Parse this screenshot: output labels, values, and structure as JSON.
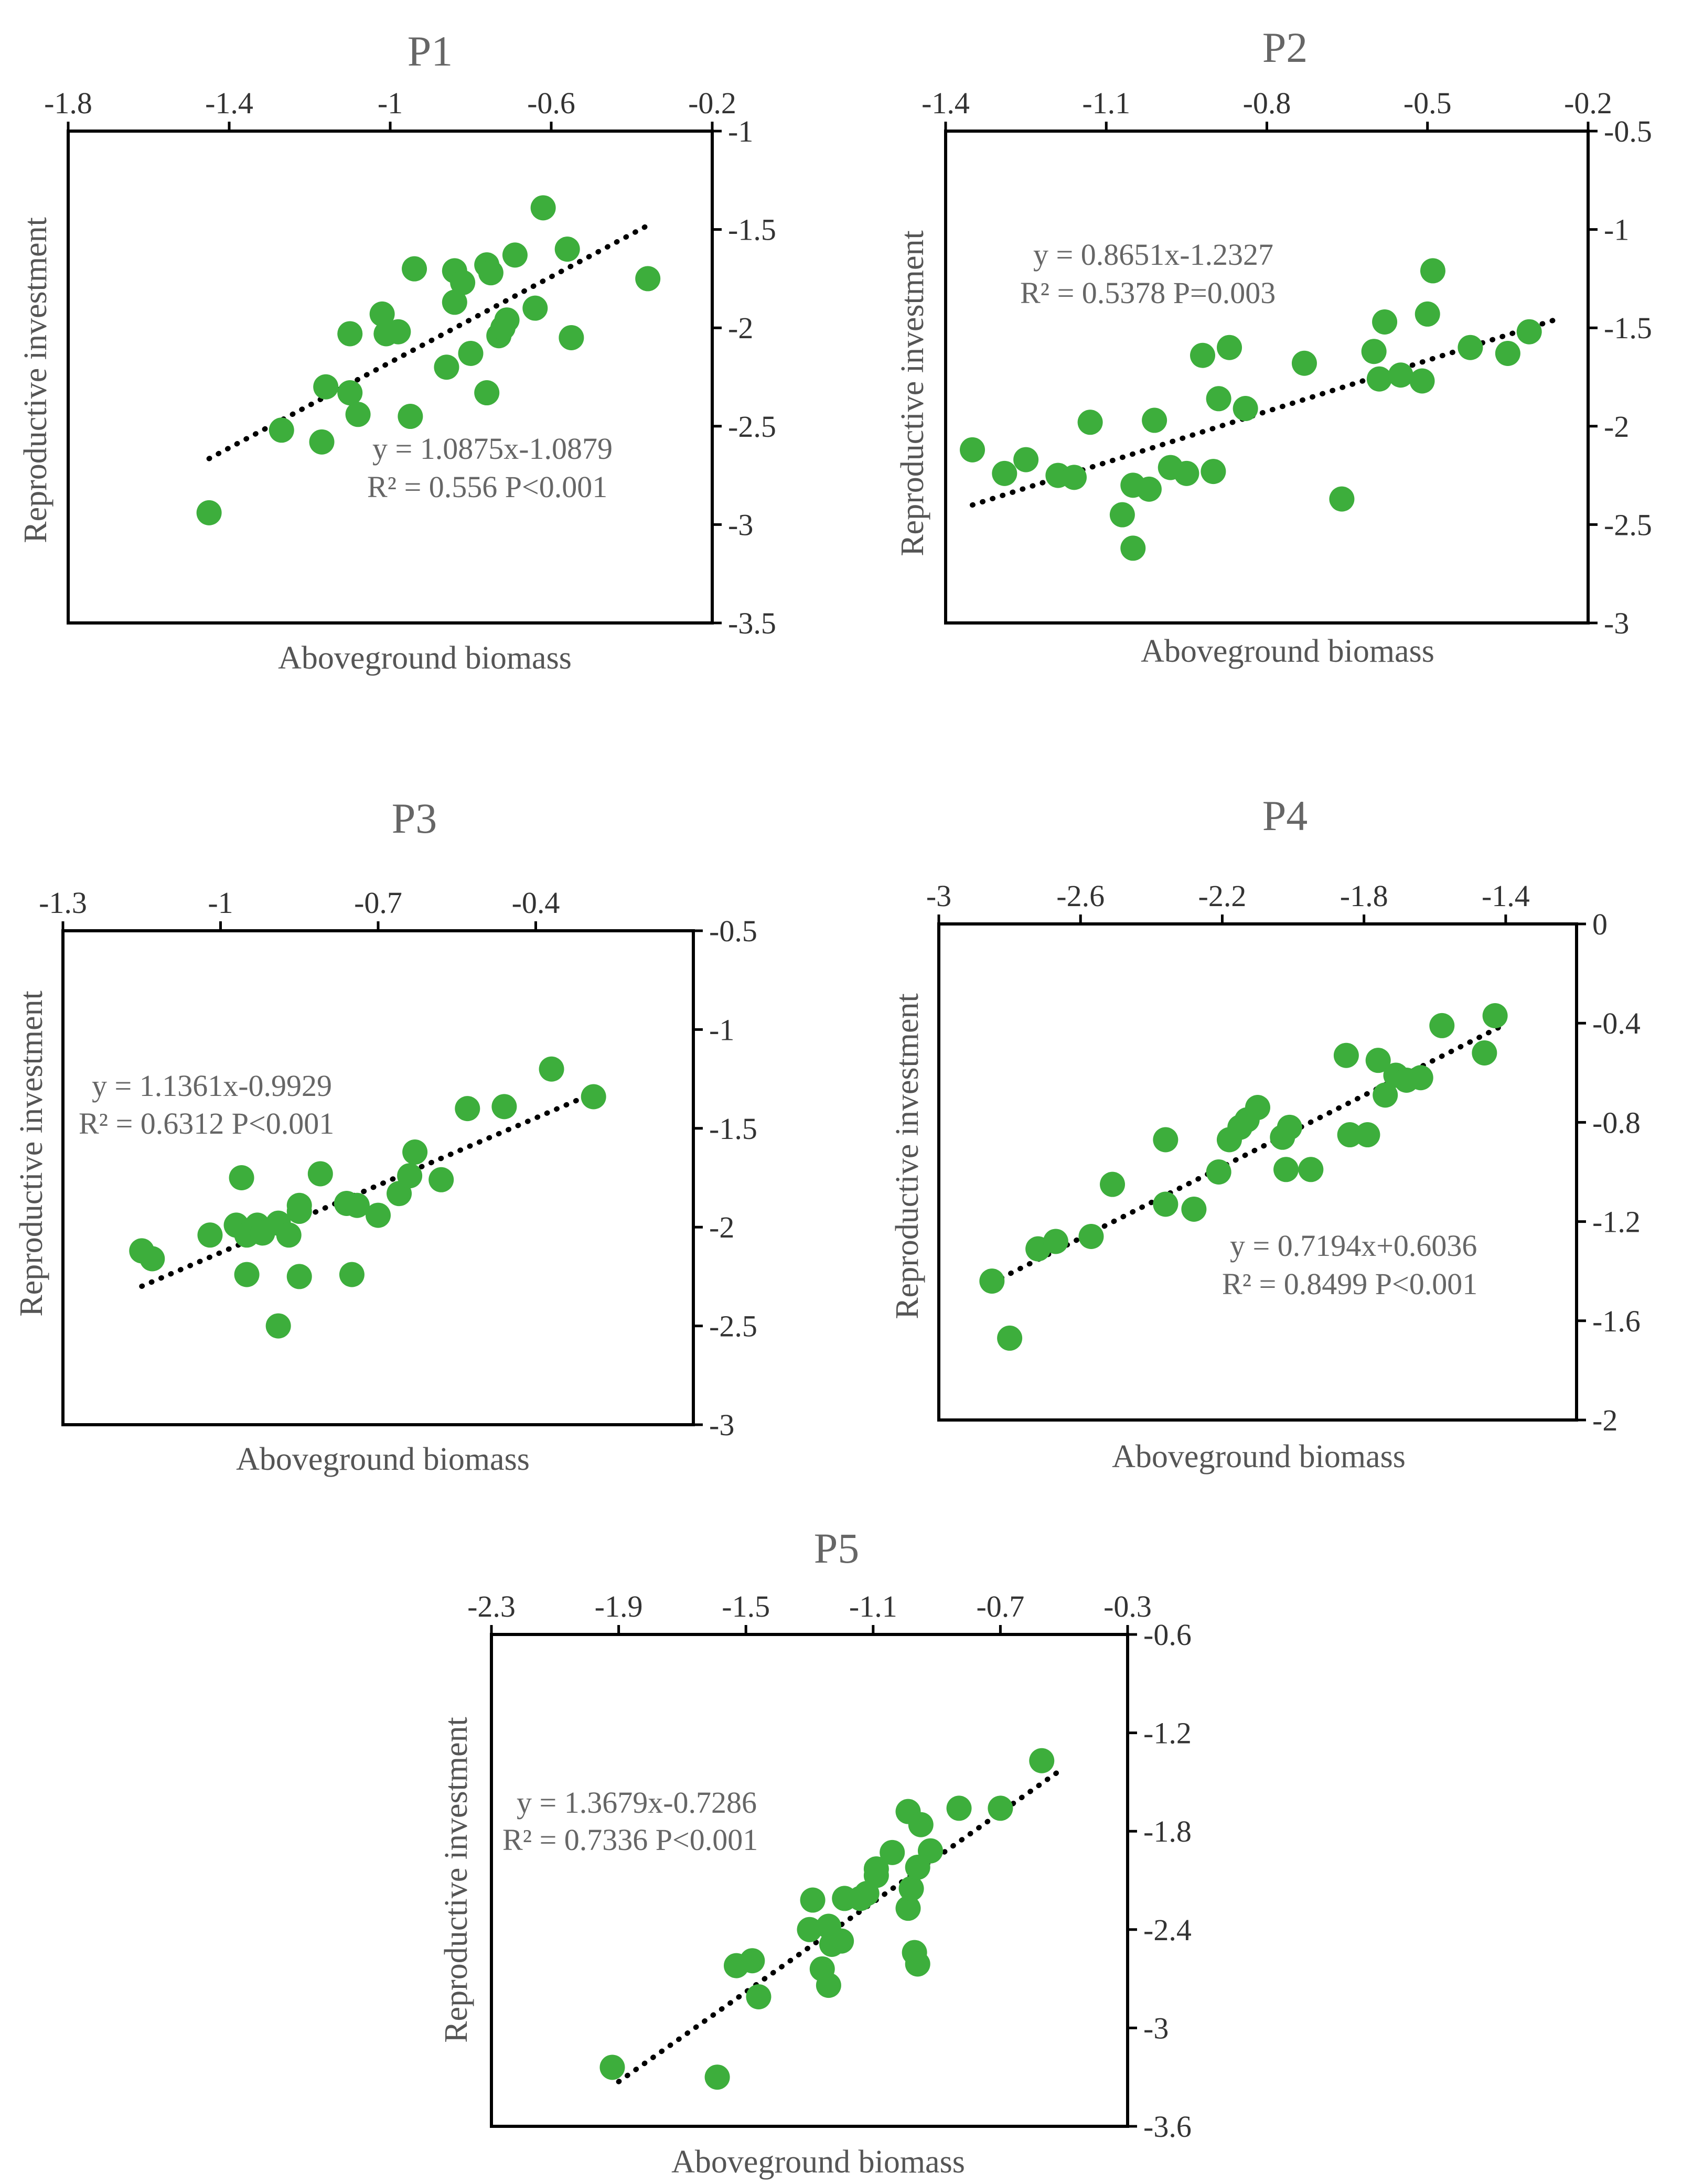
{
  "colors": {
    "point": "#3DAE3C",
    "axis": "#000000",
    "title": "#666666",
    "text": "#555555"
  },
  "chart_data": [
    {
      "type": "scatter",
      "title": "P1",
      "xlabel": "Aboveground biomass",
      "ylabel": "Reproductive investment",
      "xlim": [
        -1.8,
        -0.2
      ],
      "ylim": [
        -3.5,
        -1
      ],
      "xticks": [
        -1.8,
        -1.4,
        -1,
        -0.6,
        -0.2
      ],
      "yticks": [
        -1,
        -1.5,
        -2,
        -2.5,
        -3,
        -3.5
      ],
      "xtick_labels": [
        "-1.8",
        "-1.4",
        "-1",
        "-0.6",
        "-0.2"
      ],
      "ytick_labels": [
        "-1",
        "-1.5",
        "-2",
        "-2.5",
        "-3",
        "-3.5"
      ],
      "trend": {
        "slope": 1.0875,
        "intercept": -1.0879,
        "x_range": [
          -1.45,
          -0.36
        ]
      },
      "equation": "y = 1.0875x-1.0879",
      "stats": "R² = 0.556  P<0.001",
      "points": [
        {
          "x": -1.45,
          "y": -2.94
        },
        {
          "x": -1.27,
          "y": -2.52
        },
        {
          "x": -1.17,
          "y": -2.58
        },
        {
          "x": -1.16,
          "y": -2.3
        },
        {
          "x": -1.1,
          "y": -2.33
        },
        {
          "x": -1.08,
          "y": -2.44
        },
        {
          "x": -1.1,
          "y": -2.03
        },
        {
          "x": -1.02,
          "y": -1.93
        },
        {
          "x": -1.01,
          "y": -2.03
        },
        {
          "x": -0.98,
          "y": -2.02
        },
        {
          "x": -0.95,
          "y": -2.45
        },
        {
          "x": -0.94,
          "y": -1.7
        },
        {
          "x": -0.86,
          "y": -2.2
        },
        {
          "x": -0.84,
          "y": -1.71
        },
        {
          "x": -0.84,
          "y": -1.87
        },
        {
          "x": -0.82,
          "y": -1.77
        },
        {
          "x": -0.8,
          "y": -2.13
        },
        {
          "x": -0.76,
          "y": -1.68
        },
        {
          "x": -0.75,
          "y": -1.72
        },
        {
          "x": -0.76,
          "y": -2.33
        },
        {
          "x": -0.73,
          "y": -2.04
        },
        {
          "x": -0.72,
          "y": -2.0
        },
        {
          "x": -0.71,
          "y": -1.96
        },
        {
          "x": -0.69,
          "y": -1.63
        },
        {
          "x": -0.64,
          "y": -1.9
        },
        {
          "x": -0.62,
          "y": -1.39
        },
        {
          "x": -0.56,
          "y": -1.6
        },
        {
          "x": -0.55,
          "y": -2.05
        },
        {
          "x": -0.36,
          "y": -1.75
        }
      ]
    },
    {
      "type": "scatter",
      "title": "P2",
      "xlabel": "Aboveground biomass",
      "ylabel": "Reproductive investment",
      "xlim": [
        -1.4,
        -0.2
      ],
      "ylim": [
        -3,
        -0.5
      ],
      "xticks": [
        -1.4,
        -1.1,
        -0.8,
        -0.5,
        -0.2
      ],
      "yticks": [
        -0.5,
        -1,
        -1.5,
        -2,
        -2.5,
        -3
      ],
      "xtick_labels": [
        "-1.4",
        "-1.1",
        "-0.8",
        "-0.5",
        "-0.2"
      ],
      "ytick_labels": [
        "-0.5",
        "-1",
        "-1.5",
        "-2",
        "-2.5",
        "-3"
      ],
      "trend": {
        "slope": 0.8651,
        "intercept": -1.2327,
        "x_range": [
          -1.35,
          -0.26
        ]
      },
      "equation": "y = 0.8651x-1.2327",
      "stats": "R² = 0.5378  P=0.003",
      "points": [
        {
          "x": -1.35,
          "y": -2.12
        },
        {
          "x": -1.29,
          "y": -2.24
        },
        {
          "x": -1.25,
          "y": -2.17
        },
        {
          "x": -1.19,
          "y": -2.25
        },
        {
          "x": -1.16,
          "y": -2.26
        },
        {
          "x": -1.13,
          "y": -1.98
        },
        {
          "x": -1.07,
          "y": -2.45
        },
        {
          "x": -1.05,
          "y": -2.62
        },
        {
          "x": -1.05,
          "y": -2.3
        },
        {
          "x": -1.02,
          "y": -2.32
        },
        {
          "x": -1.01,
          "y": -1.97
        },
        {
          "x": -0.98,
          "y": -2.21
        },
        {
          "x": -0.95,
          "y": -2.24
        },
        {
          "x": -0.92,
          "y": -1.64
        },
        {
          "x": -0.9,
          "y": -2.23
        },
        {
          "x": -0.89,
          "y": -1.86
        },
        {
          "x": -0.87,
          "y": -1.6
        },
        {
          "x": -0.84,
          "y": -1.91
        },
        {
          "x": -0.73,
          "y": -1.68
        },
        {
          "x": -0.66,
          "y": -2.37
        },
        {
          "x": -0.6,
          "y": -1.62
        },
        {
          "x": -0.59,
          "y": -1.76
        },
        {
          "x": -0.58,
          "y": -1.47
        },
        {
          "x": -0.55,
          "y": -1.74
        },
        {
          "x": -0.51,
          "y": -1.77
        },
        {
          "x": -0.5,
          "y": -1.43
        },
        {
          "x": -0.49,
          "y": -1.21
        },
        {
          "x": -0.42,
          "y": -1.6
        },
        {
          "x": -0.35,
          "y": -1.63
        },
        {
          "x": -0.31,
          "y": -1.52
        }
      ]
    },
    {
      "type": "scatter",
      "title": "P3",
      "xlabel": "Aboveground biomass",
      "ylabel": "Reproductive investment",
      "xlim": [
        -1.3,
        -0.1
      ],
      "ylim": [
        -3,
        -0.5
      ],
      "xticks": [
        -1.3,
        -1,
        -0.7,
        -0.4
      ],
      "yticks": [
        -0.5,
        -1,
        -1.5,
        -2,
        -2.5,
        -3
      ],
      "xtick_labels": [
        "-1.3",
        "-1",
        "-0.7",
        "-0.4"
      ],
      "ytick_labels": [
        "-0.5",
        "-1",
        "-1.5",
        "-2",
        "-2.5",
        "-3"
      ],
      "trend": {
        "slope": 1.1361,
        "intercept": -0.9929,
        "x_range": [
          -1.15,
          -0.29
        ]
      },
      "equation": "y = 1.1361x-0.9929",
      "stats": "R² = 0.6312  P<0.001",
      "points": [
        {
          "x": -1.15,
          "y": -2.12
        },
        {
          "x": -1.13,
          "y": -2.16
        },
        {
          "x": -1.02,
          "y": -2.04
        },
        {
          "x": -0.97,
          "y": -1.99
        },
        {
          "x": -0.96,
          "y": -1.75
        },
        {
          "x": -0.95,
          "y": -2.24
        },
        {
          "x": -0.95,
          "y": -2.04
        },
        {
          "x": -0.93,
          "y": -1.99
        },
        {
          "x": -0.92,
          "y": -2.03
        },
        {
          "x": -0.89,
          "y": -2.5
        },
        {
          "x": -0.89,
          "y": -1.98
        },
        {
          "x": -0.87,
          "y": -2.04
        },
        {
          "x": -0.85,
          "y": -1.89
        },
        {
          "x": -0.85,
          "y": -2.25
        },
        {
          "x": -0.85,
          "y": -1.92
        },
        {
          "x": -0.81,
          "y": -1.73
        },
        {
          "x": -0.76,
          "y": -1.88
        },
        {
          "x": -0.74,
          "y": -1.89
        },
        {
          "x": -0.75,
          "y": -2.24
        },
        {
          "x": -0.7,
          "y": -1.94
        },
        {
          "x": -0.66,
          "y": -1.83
        },
        {
          "x": -0.64,
          "y": -1.74
        },
        {
          "x": -0.63,
          "y": -1.62
        },
        {
          "x": -0.58,
          "y": -1.76
        },
        {
          "x": -0.53,
          "y": -1.4
        },
        {
          "x": -0.46,
          "y": -1.39
        },
        {
          "x": -0.37,
          "y": -1.2
        },
        {
          "x": -0.29,
          "y": -1.34
        }
      ]
    },
    {
      "type": "scatter",
      "title": "P4",
      "xlabel": "Aboveground biomass",
      "ylabel": "Reproductive investment",
      "xlim": [
        -3,
        -1.2
      ],
      "ylim": [
        -2,
        0
      ],
      "xticks": [
        -3,
        -2.6,
        -2.2,
        -1.8,
        -1.4
      ],
      "yticks": [
        0,
        -0.4,
        -0.8,
        -1.2,
        -1.6,
        -2
      ],
      "xtick_labels": [
        "-3",
        "-2.6",
        "-2.2",
        "-1.8",
        "-1.4"
      ],
      "ytick_labels": [
        "0",
        "-0.4",
        "-0.8",
        "-1.2",
        "-1.6",
        "-2"
      ],
      "trend": {
        "slope": 0.7194,
        "intercept": 0.6036,
        "x_range": [
          -2.85,
          -1.42
        ]
      },
      "equation": "y = 0.7194x+0.6036",
      "stats": "R² = 0.8499  P<0.001",
      "points": [
        {
          "x": -2.85,
          "y": -1.44
        },
        {
          "x": -2.8,
          "y": -1.67
        },
        {
          "x": -2.72,
          "y": -1.31
        },
        {
          "x": -2.67,
          "y": -1.28
        },
        {
          "x": -2.57,
          "y": -1.26
        },
        {
          "x": -2.51,
          "y": -1.05
        },
        {
          "x": -2.36,
          "y": -1.13
        },
        {
          "x": -2.36,
          "y": -0.87
        },
        {
          "x": -2.28,
          "y": -1.15
        },
        {
          "x": -2.21,
          "y": -1.0
        },
        {
          "x": -2.18,
          "y": -0.87
        },
        {
          "x": -2.15,
          "y": -0.82
        },
        {
          "x": -2.13,
          "y": -0.79
        },
        {
          "x": -2.1,
          "y": -0.74
        },
        {
          "x": -2.03,
          "y": -0.86
        },
        {
          "x": -2.01,
          "y": -0.82
        },
        {
          "x": -2.02,
          "y": -0.99
        },
        {
          "x": -1.95,
          "y": -0.99
        },
        {
          "x": -1.85,
          "y": -0.53
        },
        {
          "x": -1.84,
          "y": -0.85
        },
        {
          "x": -1.79,
          "y": -0.85
        },
        {
          "x": -1.76,
          "y": -0.55
        },
        {
          "x": -1.74,
          "y": -0.69
        },
        {
          "x": -1.71,
          "y": -0.61
        },
        {
          "x": -1.68,
          "y": -0.63
        },
        {
          "x": -1.64,
          "y": -0.62
        },
        {
          "x": -1.58,
          "y": -0.41
        },
        {
          "x": -1.46,
          "y": -0.52
        },
        {
          "x": -1.43,
          "y": -0.37
        }
      ]
    },
    {
      "type": "scatter",
      "title": "P5",
      "xlabel": "Aboveground biomass",
      "ylabel": "Reproductive investment",
      "xlim": [
        -2.3,
        -0.3
      ],
      "ylim": [
        -3.6,
        -0.6
      ],
      "xticks": [
        -2.3,
        -1.9,
        -1.5,
        -1.1,
        -0.7,
        -0.3
      ],
      "yticks": [
        -0.6,
        -1.2,
        -1.8,
        -2.4,
        -3,
        -3.6
      ],
      "xtick_labels": [
        "-2.3",
        "-1.9",
        "-1.5",
        "-1.1",
        "-0.7",
        "-0.3"
      ],
      "ytick_labels": [
        "-0.6",
        "-1.2",
        "-1.8",
        "-2.4",
        "-3",
        "-3.6"
      ],
      "trend": {
        "slope": 1.3679,
        "intercept": -0.7286,
        "x_range": [
          -1.9,
          -0.5
        ]
      },
      "equation": "y = 1.3679x-0.7286",
      "stats": "R² = 0.7336  P<0.001",
      "points": [
        {
          "x": -1.92,
          "y": -3.24
        },
        {
          "x": -1.59,
          "y": -3.3
        },
        {
          "x": -1.53,
          "y": -2.62
        },
        {
          "x": -1.48,
          "y": -2.59
        },
        {
          "x": -1.46,
          "y": -2.81
        },
        {
          "x": -1.3,
          "y": -2.4
        },
        {
          "x": -1.29,
          "y": -2.22
        },
        {
          "x": -1.26,
          "y": -2.64
        },
        {
          "x": -1.24,
          "y": -2.74
        },
        {
          "x": -1.24,
          "y": -2.38
        },
        {
          "x": -1.23,
          "y": -2.49
        },
        {
          "x": -1.2,
          "y": -2.47
        },
        {
          "x": -1.19,
          "y": -2.21
        },
        {
          "x": -1.14,
          "y": -2.21
        },
        {
          "x": -1.12,
          "y": -2.18
        },
        {
          "x": -1.09,
          "y": -2.07
        },
        {
          "x": -1.09,
          "y": -2.03
        },
        {
          "x": -1.04,
          "y": -1.93
        },
        {
          "x": -0.99,
          "y": -1.68
        },
        {
          "x": -0.99,
          "y": -2.27
        },
        {
          "x": -0.98,
          "y": -2.15
        },
        {
          "x": -0.97,
          "y": -2.54
        },
        {
          "x": -0.96,
          "y": -2.61
        },
        {
          "x": -0.96,
          "y": -2.02
        },
        {
          "x": -0.95,
          "y": -1.76
        },
        {
          "x": -0.92,
          "y": -1.92
        },
        {
          "x": -0.83,
          "y": -1.66
        },
        {
          "x": -0.7,
          "y": -1.66
        },
        {
          "x": -0.57,
          "y": -1.37
        }
      ]
    }
  ]
}
